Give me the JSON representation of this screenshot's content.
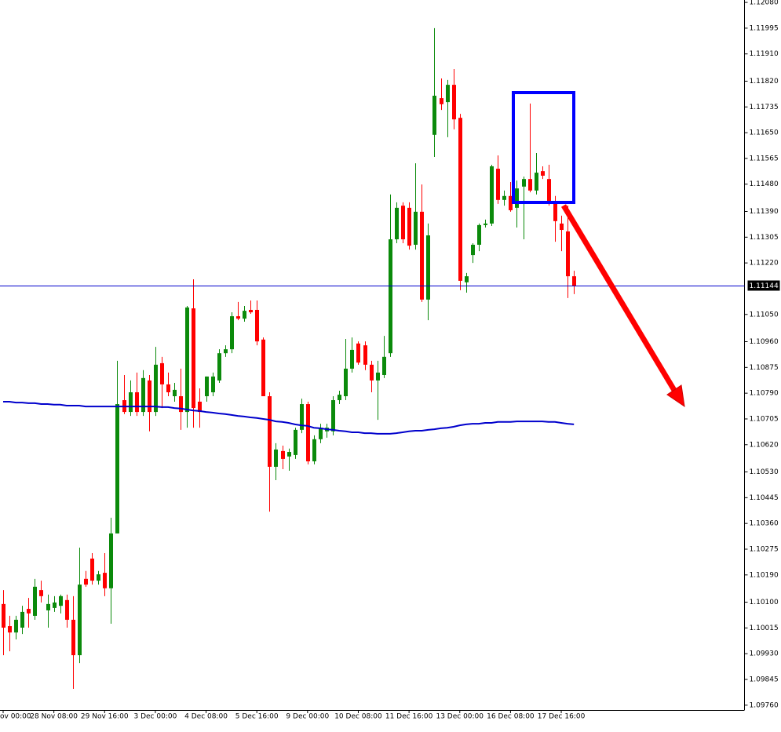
{
  "chart_data": {
    "type": "candlestick",
    "categories": [
      "ov 00:00",
      null,
      null,
      null,
      null,
      null,
      null,
      null,
      "28 Nov 08:00",
      null,
      null,
      null,
      null,
      null,
      null,
      null,
      "29 Nov 16:00",
      null,
      null,
      null,
      null,
      null,
      null,
      null,
      "3 Dec 00:00",
      null,
      null,
      null,
      null,
      null,
      null,
      null,
      "4 Dec 08:00",
      null,
      null,
      null,
      null,
      null,
      null,
      null,
      "5 Dec 16:00",
      null,
      null,
      null,
      null,
      null,
      null,
      null,
      "9 Dec 00:00",
      null,
      null,
      null,
      null,
      null,
      null,
      null,
      "10 Dec 08:00",
      null,
      null,
      null,
      null,
      null,
      null,
      null,
      "11 Dec 16:00",
      null,
      null,
      null,
      null,
      null,
      null,
      null,
      "13 Dec 00:00",
      null,
      null,
      null,
      null,
      null,
      null,
      null,
      "16 Dec 08:00",
      null,
      null,
      null,
      null,
      null,
      null,
      null,
      "17 Dec 16:00",
      null,
      null
    ],
    "open": [
      1.10094,
      1.10021,
      1.1,
      1.10016,
      1.10078,
      1.10055,
      1.1014,
      1.10073,
      1.10081,
      1.10088,
      1.10107,
      1.10042,
      1.09925,
      1.10177,
      1.10244,
      1.10171,
      1.10197,
      1.10146,
      1.10327,
      1.10767,
      1.10728,
      1.10793,
      1.10728,
      1.10832,
      1.10728,
      1.10889,
      1.10819,
      1.1078,
      1.1078,
      1.10728,
      1.1107,
      1.10762,
      1.1078,
      1.10793,
      1.10832,
      1.10922,
      1.10935,
      1.11044,
      1.11036,
      1.11065,
      1.11065,
      1.10967,
      1.1078,
      1.10547,
      1.10599,
      1.10581,
      1.10586,
      1.10669,
      1.10754,
      1.10565,
      1.10638,
      1.10664,
      1.10664,
      1.10767,
      1.1078,
      1.10871,
      1.10954,
      1.10948,
      1.10884,
      1.10832,
      1.1085,
      1.10922,
      1.11298,
      1.11409,
      1.11402,
      1.1128,
      1.11389,
      1.11099,
      1.11643,
      1.11764,
      1.11751,
      1.11808,
      1.11699,
      1.11156,
      1.11246,
      1.1128,
      1.11345,
      1.1135,
      1.11531,
      1.11428,
      1.11441,
      1.11402,
      1.11472,
      1.11497,
      1.11459,
      1.11523,
      1.11497,
      1.1142,
      1.1135,
      1.11324,
      1.11176
    ],
    "high": [
      1.1014,
      1.10055,
      1.10055,
      1.10088,
      1.10114,
      1.10177,
      1.10171,
      1.10125,
      1.1012,
      1.10125,
      1.10125,
      1.1012,
      1.1028,
      1.10203,
      1.10262,
      1.10203,
      1.10262,
      1.10379,
      1.10897,
      1.1085,
      1.10832,
      1.10858,
      1.10866,
      1.1085,
      1.10943,
      1.1091,
      1.10858,
      1.10824,
      1.10871,
      1.11078,
      1.11166,
      1.10806,
      1.10845,
      1.10858,
      1.10935,
      1.10948,
      1.11057,
      1.11091,
      1.11078,
      1.11096,
      1.11096,
      1.10974,
      1.10793,
      1.10625,
      1.10617,
      1.10607,
      1.10676,
      1.10772,
      1.10762,
      1.10651,
      1.10689,
      1.10689,
      1.1078,
      1.10798,
      1.10969,
      1.10974,
      1.10961,
      1.10961,
      1.10897,
      1.10897,
      1.10979,
      1.11446,
      1.1142,
      1.1142,
      1.1142,
      1.11549,
      1.11479,
      1.1135,
      1.11995,
      1.11829,
      1.11824,
      1.1186,
      1.11712,
      1.11187,
      1.11285,
      1.1135,
      1.11363,
      1.11544,
      1.11575,
      1.11459,
      1.11487,
      1.11492,
      1.11505,
      1.11746,
      1.11583,
      1.11539,
      1.11544,
      1.11441,
      1.11376,
      1.11409,
      1.11194
    ],
    "low": [
      1.09925,
      1.09938,
      1.09977,
      1.09995,
      1.10016,
      1.10042,
      1.10099,
      1.10016,
      1.10068,
      1.10063,
      1.10016,
      1.09814,
      1.09899,
      1.10151,
      1.10158,
      1.10158,
      1.1012,
      1.10029,
      1.10327,
      1.10721,
      1.10715,
      1.10715,
      1.10715,
      1.10664,
      1.10715,
      1.10741,
      1.1078,
      1.10762,
      1.10669,
      1.10676,
      1.10676,
      1.10676,
      1.10762,
      1.1078,
      1.10824,
      1.1091,
      1.10922,
      1.11031,
      1.11026,
      1.11052,
      1.10948,
      1.1078,
      1.10399,
      1.10503,
      1.10539,
      1.10534,
      1.10573,
      1.10658,
      1.10555,
      1.10555,
      1.10625,
      1.10643,
      1.10651,
      1.10754,
      1.10767,
      1.10858,
      1.10884,
      1.10866,
      1.10793,
      1.10702,
      1.1084,
      1.1091,
      1.11285,
      1.11285,
      1.11264,
      1.11264,
      1.11091,
      1.11031,
      1.1157,
      1.11725,
      1.11635,
      1.11661,
      1.1113,
      1.11122,
      1.1122,
      1.11259,
      1.11337,
      1.11342,
      1.11415,
      1.11409,
      1.11389,
      1.11337,
      1.11298,
      1.11453,
      1.11446,
      1.11497,
      1.11409,
      1.1129,
      1.11259,
      1.11104,
      1.11117
    ],
    "close": [
      1.10016,
      1.1,
      1.10042,
      1.10068,
      1.10063,
      1.10151,
      1.1012,
      1.10094,
      1.10099,
      1.1012,
      1.10042,
      1.09925,
      1.10158,
      1.10158,
      1.10171,
      1.10192,
      1.10146,
      1.10327,
      1.10754,
      1.10728,
      1.10793,
      1.10728,
      1.1084,
      1.10728,
      1.10884,
      1.10819,
      1.10793,
      1.10801,
      1.10728,
      1.11073,
      1.10741,
      1.10728,
      1.10845,
      1.10845,
      1.10922,
      1.10935,
      1.11044,
      1.11036,
      1.11062,
      1.11057,
      1.10961,
      1.1078,
      1.10547,
      1.10604,
      1.10573,
      1.10596,
      1.10669,
      1.10754,
      1.10565,
      1.10638,
      1.10676,
      1.10676,
      1.10767,
      1.10785,
      1.10871,
      1.10933,
      1.10891,
      1.10884,
      1.10832,
      1.10858,
      1.1091,
      1.11298,
      1.11402,
      1.11298,
      1.11277,
      1.11389,
      1.11099,
      1.11311,
      1.11772,
      1.11744,
      1.11808,
      1.11694,
      1.11161,
      1.11176,
      1.1128,
      1.11345,
      1.1135,
      1.11539,
      1.11428,
      1.11441,
      1.11394,
      1.11466,
      1.11497,
      1.11459,
      1.11518,
      1.11508,
      1.11415,
      1.11358,
      1.11329,
      1.11176,
      1.11144
    ],
    "up_color": "#0b8a0b",
    "down_color": "#ff0000",
    "ma": {
      "color": "#0000cc",
      "values": [
        1.10762,
        1.10762,
        1.10759,
        1.10759,
        1.10757,
        1.10757,
        1.10754,
        1.10754,
        1.10752,
        1.10752,
        1.10749,
        1.10749,
        1.10749,
        1.10746,
        1.10746,
        1.10746,
        1.10746,
        1.10746,
        1.10746,
        1.10746,
        1.10746,
        1.10746,
        1.10746,
        1.10746,
        1.10746,
        1.10744,
        1.10744,
        1.10741,
        1.10739,
        1.10736,
        1.10733,
        1.10731,
        1.10728,
        1.10726,
        1.10723,
        1.10721,
        1.10718,
        1.10715,
        1.10713,
        1.1071,
        1.10708,
        1.10705,
        1.10702,
        1.10697,
        1.10695,
        1.10692,
        1.10687,
        1.10684,
        1.10682,
        1.10676,
        1.10674,
        1.10671,
        1.10669,
        1.10666,
        1.10664,
        1.10661,
        1.10661,
        1.10658,
        1.10658,
        1.10656,
        1.10656,
        1.10656,
        1.10658,
        1.10661,
        1.10664,
        1.10666,
        1.10666,
        1.10669,
        1.10671,
        1.10674,
        1.10676,
        1.10679,
        1.10684,
        1.10687,
        1.10689,
        1.10689,
        1.10692,
        1.10692,
        1.10695,
        1.10695,
        1.10695,
        1.10697,
        1.10697,
        1.10697,
        1.10697,
        1.10697,
        1.10695,
        1.10695,
        1.10692,
        1.10689,
        1.10687
      ]
    },
    "price_line": {
      "value": 1.11144,
      "color": "#0000cc"
    },
    "ylim": [
      1.09744,
      1.12088
    ],
    "yticks": [
      {
        "value": 1.1208,
        "label": "1.12080"
      },
      1.11995,
      {
        "value": 1.1191,
        "label": "1.11910"
      },
      {
        "value": 1.1182,
        "label": "1.11820"
      },
      1.11735,
      {
        "value": 1.1165,
        "label": "1.11650"
      },
      1.11565,
      {
        "value": 1.1148,
        "label": "1.11480"
      },
      {
        "value": 1.1139,
        "label": "1.11390"
      },
      1.11305,
      {
        "value": 1.1122,
        "label": "1.11220"
      },
      {
        "value": 1.1105,
        "label": "1.11050"
      },
      {
        "value": 1.1096,
        "label": "1.10960"
      },
      1.10875,
      {
        "value": 1.1079,
        "label": "1.10790"
      },
      1.10705,
      {
        "value": 1.1062,
        "label": "1.10620"
      },
      {
        "value": 1.1053,
        "label": "1.10530"
      },
      1.10445,
      {
        "value": 1.1036,
        "label": "1.10360"
      },
      1.10275,
      {
        "value": 1.1019,
        "label": "1.10190"
      },
      {
        "value": 1.101,
        "label": "1.10100"
      },
      1.10015,
      {
        "value": 1.0993,
        "label": "1.09930"
      },
      1.09845,
      {
        "value": 1.0976,
        "label": "1.09760"
      }
    ]
  }
}
